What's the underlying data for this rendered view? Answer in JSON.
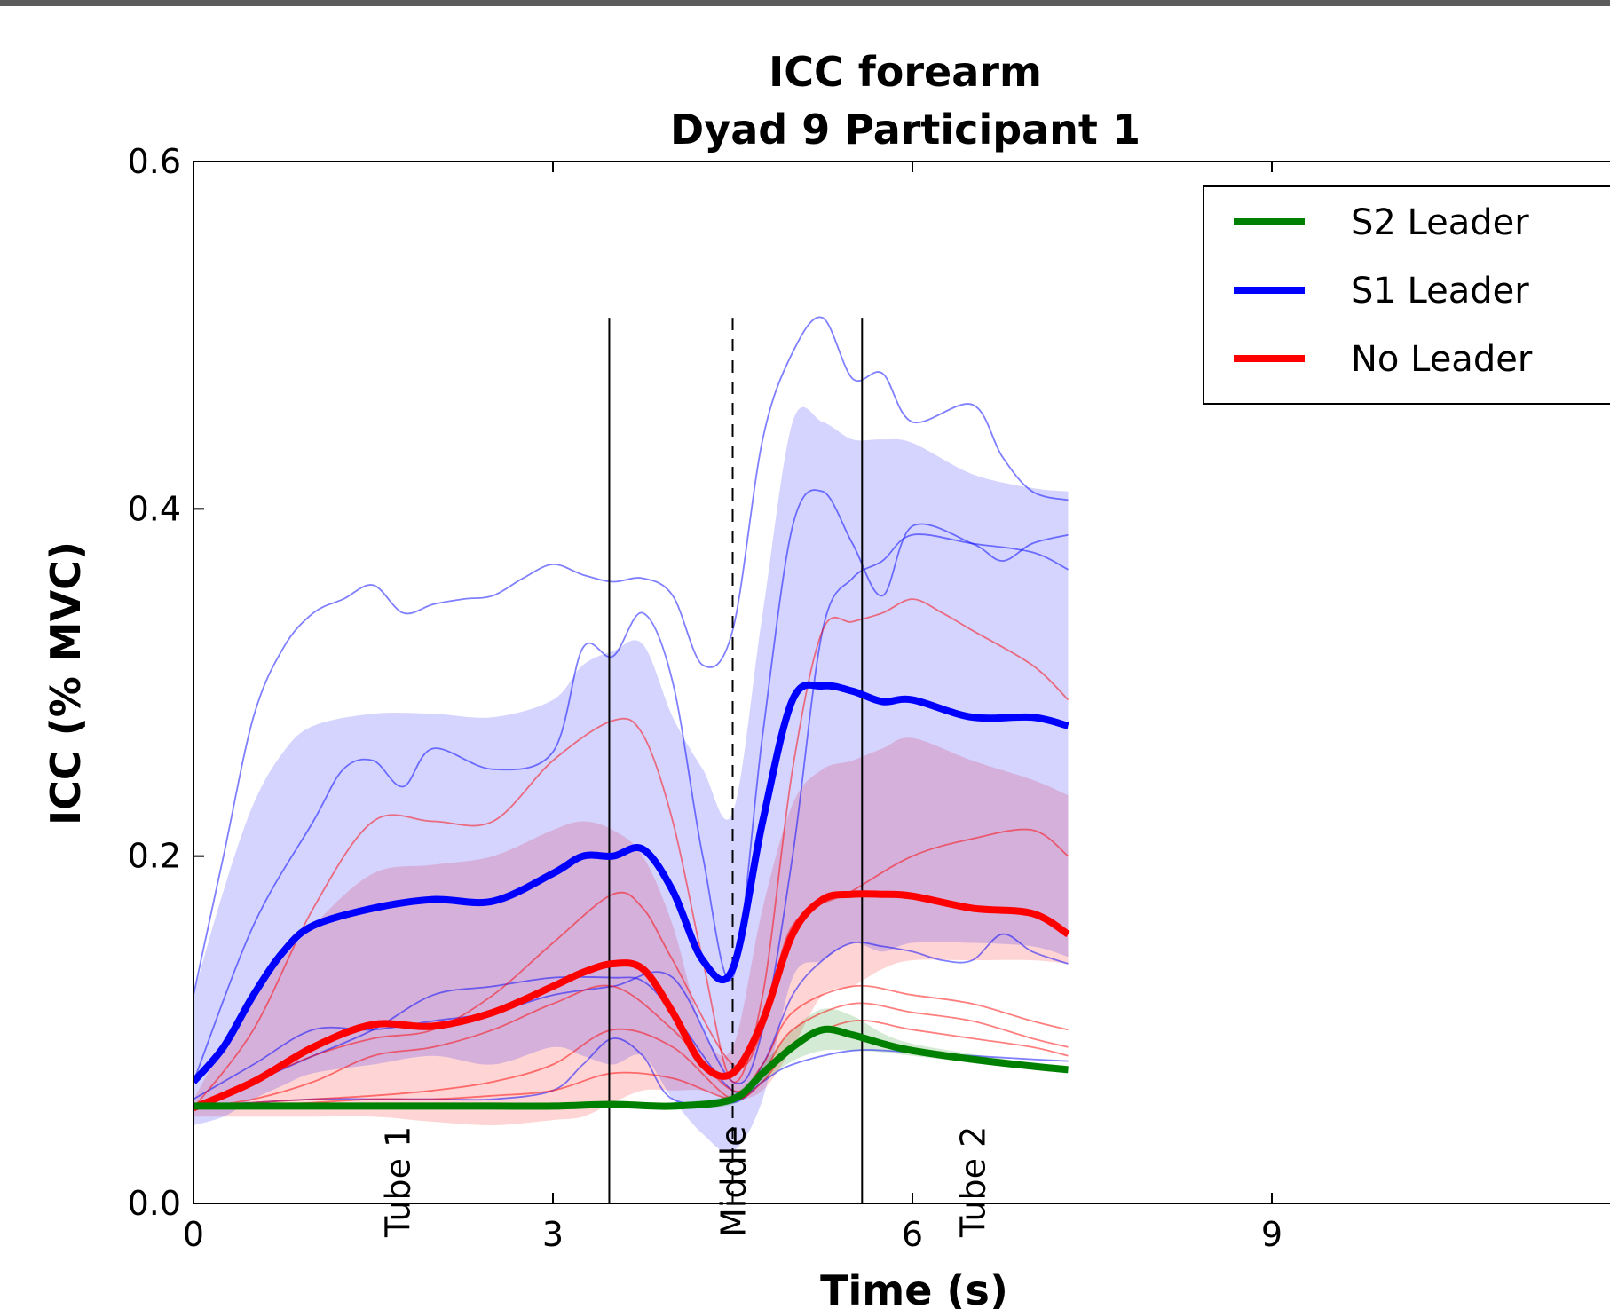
{
  "chart_data": {
    "type": "line",
    "title": [
      "ICC forearm",
      "Dyad 9 Participant 1"
    ],
    "xlabel": "Time (s)",
    "ylabel": "ICC (% MVC)",
    "xlim": [
      0,
      12
    ],
    "ylim": [
      0,
      0.6
    ],
    "xticks": [
      "0",
      "3",
      "6",
      "9"
    ],
    "yticks": [
      "0.0",
      "0.2",
      "0.4",
      "0.6"
    ],
    "xtick_values": [
      0,
      3,
      6,
      9
    ],
    "ytick_values": [
      0,
      0.2,
      0.4,
      0.6
    ],
    "legend_position": "top-right",
    "vlines": [
      {
        "x": 3.47,
        "style": "solid",
        "ymax": 0.51
      },
      {
        "x": 4.5,
        "style": "dashed",
        "ymax": 0.51
      },
      {
        "x": 5.58,
        "style": "solid",
        "ymax": 0.51
      }
    ],
    "annotations": [
      {
        "text": "Tube 1",
        "x": 1.7
      },
      {
        "text": "Middle",
        "x": 4.5
      },
      {
        "text": "Tube 2",
        "x": 6.5
      }
    ],
    "series": [
      {
        "name": "S2 Leader",
        "color": "#008000",
        "x": [
          0,
          0.5,
          1,
          1.5,
          2,
          2.5,
          3,
          3.5,
          4,
          4.5,
          4.75,
          5,
          5.25,
          5.5,
          5.75,
          6,
          6.5,
          7,
          7.3
        ],
        "mean": [
          0.056,
          0.056,
          0.056,
          0.056,
          0.056,
          0.056,
          0.056,
          0.057,
          0.056,
          0.06,
          0.075,
          0.09,
          0.1,
          0.097,
          0.092,
          0.088,
          0.083,
          0.079,
          0.077
        ],
        "upper": [
          0.057,
          0.057,
          0.057,
          0.057,
          0.057,
          0.057,
          0.058,
          0.058,
          0.058,
          0.063,
          0.08,
          0.1,
          0.112,
          0.108,
          0.098,
          0.092,
          0.086,
          0.081,
          0.079
        ],
        "lower": [
          0.055,
          0.055,
          0.055,
          0.055,
          0.055,
          0.055,
          0.055,
          0.056,
          0.055,
          0.057,
          0.07,
          0.082,
          0.088,
          0.088,
          0.087,
          0.085,
          0.081,
          0.077,
          0.075
        ],
        "trials": []
      },
      {
        "name": "S1 Leader",
        "color": "#0000ff",
        "x": [
          0,
          0.25,
          0.5,
          0.75,
          1,
          1.5,
          2,
          2.5,
          3,
          3.25,
          3.5,
          3.75,
          4,
          4.25,
          4.5,
          4.75,
          5,
          5.25,
          5.5,
          5.75,
          6,
          6.5,
          7,
          7.3
        ],
        "mean": [
          0.07,
          0.09,
          0.12,
          0.145,
          0.16,
          0.17,
          0.175,
          0.174,
          0.19,
          0.2,
          0.2,
          0.204,
          0.18,
          0.14,
          0.135,
          0.22,
          0.29,
          0.298,
          0.295,
          0.289,
          0.29,
          0.28,
          0.28,
          0.275
        ],
        "upper": [
          0.12,
          0.18,
          0.23,
          0.26,
          0.275,
          0.282,
          0.282,
          0.28,
          0.29,
          0.31,
          0.318,
          0.322,
          0.28,
          0.25,
          0.225,
          0.34,
          0.45,
          0.45,
          0.44,
          0.44,
          0.438,
          0.42,
          0.412,
          0.41
        ],
        "lower": [
          0.045,
          0.05,
          0.06,
          0.068,
          0.075,
          0.08,
          0.085,
          0.08,
          0.09,
          0.085,
          0.08,
          0.085,
          0.06,
          0.04,
          0.03,
          0.06,
          0.13,
          0.14,
          0.15,
          0.145,
          0.15,
          0.15,
          0.148,
          0.142
        ],
        "trials": [
          {
            "x": [
              0,
              0.25,
              0.5,
              0.75,
              1,
              1.25,
              1.5,
              1.75,
              2,
              2.25,
              2.5,
              2.75,
              3,
              3.25,
              3.5,
              3.75,
              4,
              4.25,
              4.5,
              4.75,
              5,
              5.25,
              5.5,
              5.75,
              6,
              6.5,
              6.75,
              7,
              7.3
            ],
            "values": [
              0.12,
              0.2,
              0.28,
              0.32,
              0.34,
              0.348,
              0.356,
              0.34,
              0.345,
              0.348,
              0.35,
              0.36,
              0.368,
              0.362,
              0.358,
              0.36,
              0.35,
              0.31,
              0.33,
              0.44,
              0.49,
              0.51,
              0.475,
              0.478,
              0.45,
              0.46,
              0.43,
              0.41,
              0.405
            ]
          },
          {
            "x": [
              0,
              0.5,
              1,
              1.25,
              1.5,
              1.75,
              2,
              2.5,
              3,
              3.25,
              3.5,
              3.75,
              4,
              4.25,
              4.5,
              4.75,
              5,
              5.25,
              5.5,
              5.75,
              6,
              6.5,
              6.75,
              7,
              7.3
            ],
            "values": [
              0.07,
              0.16,
              0.22,
              0.25,
              0.255,
              0.24,
              0.262,
              0.25,
              0.26,
              0.32,
              0.315,
              0.34,
              0.3,
              0.2,
              0.13,
              0.27,
              0.39,
              0.41,
              0.38,
              0.35,
              0.39,
              0.38,
              0.37,
              0.38,
              0.385
            ]
          },
          {
            "x": [
              0,
              0.5,
              1,
              1.5,
              2,
              2.5,
              3,
              3.5,
              4,
              4.5,
              4.75,
              5,
              5.25,
              5.5,
              5.75,
              6,
              6.5,
              7,
              7.3
            ],
            "values": [
              0.06,
              0.08,
              0.1,
              0.1,
              0.105,
              0.11,
              0.12,
              0.125,
              0.13,
              0.07,
              0.1,
              0.2,
              0.33,
              0.36,
              0.37,
              0.385,
              0.38,
              0.375,
              0.365
            ]
          },
          {
            "x": [
              0,
              0.5,
              1,
              1.5,
              2,
              2.5,
              3,
              3.5,
              3.75,
              4,
              4.5,
              4.75,
              5,
              5.25,
              5.5,
              5.75,
              6,
              6.25,
              6.5,
              6.75,
              7,
              7.3
            ],
            "values": [
              0.056,
              0.07,
              0.085,
              0.1,
              0.12,
              0.125,
              0.13,
              0.13,
              0.128,
              0.11,
              0.065,
              0.08,
              0.12,
              0.14,
              0.15,
              0.148,
              0.145,
              0.14,
              0.14,
              0.155,
              0.145,
              0.138
            ]
          },
          {
            "x": [
              0,
              0.5,
              1,
              1.5,
              2,
              2.5,
              3,
              3.25,
              3.5,
              3.75,
              4,
              4.5,
              4.75,
              5,
              5.5,
              6,
              6.5,
              7,
              7.3
            ],
            "values": [
              0.056,
              0.058,
              0.06,
              0.06,
              0.06,
              0.06,
              0.065,
              0.08,
              0.095,
              0.085,
              0.06,
              0.058,
              0.07,
              0.08,
              0.088,
              0.087,
              0.085,
              0.083,
              0.082
            ]
          }
        ]
      },
      {
        "name": "No Leader",
        "color": "#ff0000",
        "x": [
          0,
          0.5,
          1,
          1.5,
          2,
          2.5,
          3,
          3.25,
          3.5,
          3.75,
          4,
          4.25,
          4.5,
          4.75,
          5,
          5.25,
          5.5,
          5.75,
          6,
          6.5,
          7,
          7.3
        ],
        "mean": [
          0.055,
          0.07,
          0.09,
          0.103,
          0.102,
          0.11,
          0.125,
          0.133,
          0.138,
          0.135,
          0.11,
          0.08,
          0.075,
          0.105,
          0.155,
          0.175,
          0.178,
          0.178,
          0.177,
          0.17,
          0.167,
          0.155
        ],
        "upper": [
          0.06,
          0.12,
          0.16,
          0.19,
          0.195,
          0.2,
          0.215,
          0.22,
          0.215,
          0.2,
          0.16,
          0.1,
          0.09,
          0.17,
          0.23,
          0.25,
          0.255,
          0.262,
          0.268,
          0.255,
          0.244,
          0.235
        ],
        "lower": [
          0.05,
          0.05,
          0.05,
          0.05,
          0.047,
          0.045,
          0.048,
          0.05,
          0.058,
          0.065,
          0.065,
          0.065,
          0.06,
          0.065,
          0.09,
          0.12,
          0.125,
          0.135,
          0.14,
          0.14,
          0.14,
          0.138
        ],
        "trials": [
          {
            "x": [
              0,
              0.5,
              1,
              1.5,
              2,
              2.5,
              3,
              3.5,
              3.75,
              4,
              4.25,
              4.5,
              4.75,
              5,
              5.25,
              5.5,
              5.75,
              6,
              6.25,
              6.5,
              7,
              7.3
            ],
            "values": [
              0.055,
              0.1,
              0.17,
              0.22,
              0.22,
              0.22,
              0.255,
              0.278,
              0.27,
              0.22,
              0.14,
              0.07,
              0.12,
              0.25,
              0.33,
              0.335,
              0.34,
              0.348,
              0.34,
              0.33,
              0.31,
              0.29
            ]
          },
          {
            "x": [
              0,
              0.5,
              1,
              1.5,
              2,
              2.5,
              3,
              3.5,
              3.75,
              4,
              4.5,
              4.75,
              5,
              5.5,
              6,
              6.5,
              7,
              7.3
            ],
            "values": [
              0.055,
              0.07,
              0.085,
              0.095,
              0.1,
              0.12,
              0.15,
              0.178,
              0.17,
              0.14,
              0.08,
              0.1,
              0.16,
              0.18,
              0.2,
              0.21,
              0.215,
              0.2
            ]
          },
          {
            "x": [
              0,
              0.5,
              1,
              1.5,
              2,
              2.5,
              3,
              3.5,
              4,
              4.5,
              4.75,
              5,
              5.5,
              6,
              6.5,
              7,
              7.3
            ],
            "values": [
              0.055,
              0.06,
              0.07,
              0.085,
              0.09,
              0.1,
              0.115,
              0.125,
              0.1,
              0.065,
              0.08,
              0.11,
              0.125,
              0.12,
              0.115,
              0.105,
              0.1
            ]
          },
          {
            "x": [
              0,
              0.5,
              1,
              1.5,
              2,
              2.5,
              3,
              3.5,
              4,
              4.5,
              4.75,
              5,
              5.5,
              6,
              6.5,
              7,
              7.3
            ],
            "values": [
              0.055,
              0.058,
              0.06,
              0.062,
              0.065,
              0.07,
              0.08,
              0.1,
              0.09,
              0.06,
              0.075,
              0.1,
              0.115,
              0.11,
              0.105,
              0.095,
              0.09
            ]
          },
          {
            "x": [
              0,
              0.5,
              1,
              1.5,
              2,
              2.5,
              3,
              3.5,
              4,
              4.5,
              4.75,
              5,
              5.5,
              6,
              6.5,
              7,
              7.3
            ],
            "values": [
              0.055,
              0.056,
              0.058,
              0.06,
              0.06,
              0.062,
              0.065,
              0.075,
              0.072,
              0.06,
              0.07,
              0.09,
              0.105,
              0.1,
              0.095,
              0.09,
              0.085
            ]
          }
        ]
      }
    ]
  }
}
